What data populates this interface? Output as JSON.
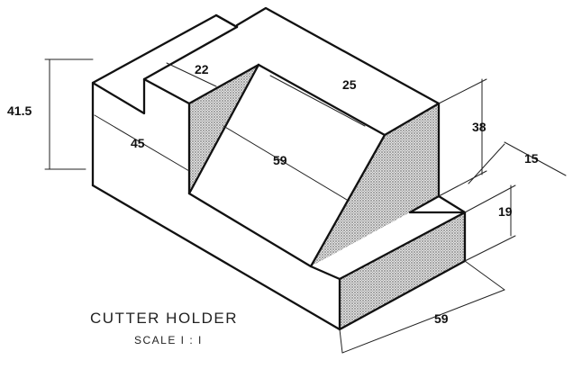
{
  "title": "CUTTER HOLDER",
  "scale": "SCALE I : I",
  "dimensions": {
    "overall_height": "41.5",
    "slot_width": "22",
    "side_width": "25",
    "left_depth": "45",
    "slope_length": "59",
    "right_height": "38",
    "step_depth": "15",
    "step_height": "19",
    "front_width": "59"
  },
  "colors": {
    "line": "#111111",
    "shade": "#b5b5b5",
    "background": "#ffffff"
  }
}
